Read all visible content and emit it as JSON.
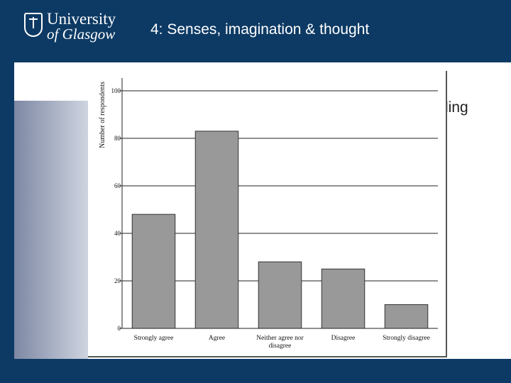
{
  "header": {
    "logo_line1": "University",
    "logo_line2": "of Glasgow",
    "title": "4: Senses, imagination & thought"
  },
  "background_fragment": "ding",
  "colors": {
    "navy": "#0d3a64",
    "bar_fill": "#999999",
    "bar_stroke": "#333333"
  },
  "chart_data": {
    "type": "bar",
    "title": "",
    "xlabel": "",
    "ylabel": "Number of respondents",
    "ylim": [
      0,
      100
    ],
    "yticks": [
      0,
      20,
      40,
      60,
      80,
      100
    ],
    "grid": true,
    "categories": [
      "Strongly agree",
      "Agree",
      "Neither agree nor disagree",
      "Disagree",
      "Strongly disagree"
    ],
    "category_lines": [
      [
        "Strongly agree"
      ],
      [
        "Agree"
      ],
      [
        "Neither agree nor",
        "disagree"
      ],
      [
        "Disagree"
      ],
      [
        "Strongly disagree"
      ]
    ],
    "values": [
      48,
      83,
      28,
      25,
      10
    ]
  }
}
